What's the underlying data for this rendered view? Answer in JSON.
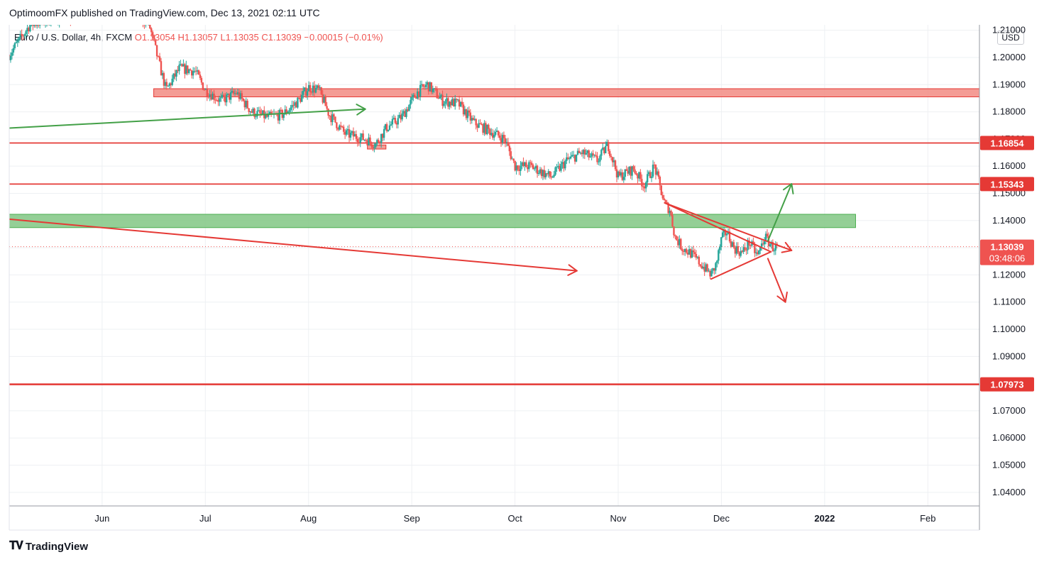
{
  "header": {
    "publisher_line": "OptimoomFX published on TradingView.com, Dec 13, 2021 02:11 UTC"
  },
  "legend": {
    "symbol": "Euro / U.S. Dollar, 4h, FXCM",
    "open": "O1.13054",
    "high": "H1.13057",
    "low": "L1.13035",
    "close": "C1.13039",
    "change": "−0.00015 (−0.01%)"
  },
  "currency_button": "USD",
  "footer": {
    "brand": "TradingView"
  },
  "colors": {
    "up": "#26a69a",
    "down": "#ef5350",
    "resistance_zone": "#f28b82",
    "support_zone": "#81c784",
    "level_line": "#e53935",
    "green_arrow": "#43a047",
    "grid": "#eef0f3"
  },
  "chart_data": {
    "type": "candlestick",
    "symbol": "EURUSD",
    "timeframe": "4h",
    "ylim": [
      1.035,
      1.212
    ],
    "y_ticks": [
      "1.21000",
      "1.20000",
      "1.19000",
      "1.18000",
      "1.17000",
      "1.16000",
      "1.15000",
      "1.14000",
      "1.13000",
      "1.12000",
      "1.11000",
      "1.10000",
      "1.09000",
      "1.08000",
      "1.07000",
      "1.06000",
      "1.05000",
      "1.04000"
    ],
    "x_ticks": [
      {
        "label": "Jun",
        "t": 1.0
      },
      {
        "label": "Jul",
        "t": 2.0
      },
      {
        "label": "Aug",
        "t": 3.0
      },
      {
        "label": "Sep",
        "t": 4.0
      },
      {
        "label": "Oct",
        "t": 5.0
      },
      {
        "label": "Nov",
        "t": 6.0
      },
      {
        "label": "Dec",
        "t": 7.0
      },
      {
        "label": "2022",
        "t": 8.0
      },
      {
        "label": "Feb",
        "t": 9.0
      }
    ],
    "xlim": [
      0.1,
      9.5
    ],
    "price_path": [
      [
        0.1,
        1.201
      ],
      [
        0.3,
        1.212
      ],
      [
        0.5,
        1.214
      ],
      [
        0.8,
        1.215
      ],
      [
        1.1,
        1.218
      ],
      [
        1.3,
        1.215
      ],
      [
        1.45,
        1.213
      ],
      [
        1.55,
        1.198
      ],
      [
        1.62,
        1.188
      ],
      [
        1.75,
        1.196
      ],
      [
        1.9,
        1.195
      ],
      [
        2.0,
        1.188
      ],
      [
        2.15,
        1.184
      ],
      [
        2.3,
        1.187
      ],
      [
        2.45,
        1.18
      ],
      [
        2.6,
        1.178
      ],
      [
        2.75,
        1.179
      ],
      [
        2.9,
        1.184
      ],
      [
        3.0,
        1.189
      ],
      [
        3.1,
        1.188
      ],
      [
        3.2,
        1.179
      ],
      [
        3.35,
        1.172
      ],
      [
        3.55,
        1.17
      ],
      [
        3.65,
        1.168
      ],
      [
        3.75,
        1.174
      ],
      [
        3.9,
        1.178
      ],
      [
        4.05,
        1.187
      ],
      [
        4.15,
        1.19
      ],
      [
        4.3,
        1.184
      ],
      [
        4.45,
        1.183
      ],
      [
        4.6,
        1.176
      ],
      [
        4.75,
        1.173
      ],
      [
        4.9,
        1.17
      ],
      [
        5.0,
        1.16
      ],
      [
        5.15,
        1.16
      ],
      [
        5.35,
        1.156
      ],
      [
        5.5,
        1.162
      ],
      [
        5.65,
        1.165
      ],
      [
        5.8,
        1.162
      ],
      [
        5.9,
        1.168
      ],
      [
        6.0,
        1.156
      ],
      [
        6.15,
        1.159
      ],
      [
        6.25,
        1.153
      ],
      [
        6.35,
        1.16
      ],
      [
        6.45,
        1.146
      ],
      [
        6.5,
        1.144
      ],
      [
        6.55,
        1.134
      ],
      [
        6.62,
        1.13
      ],
      [
        6.7,
        1.128
      ],
      [
        6.8,
        1.124
      ],
      [
        6.9,
        1.12
      ],
      [
        6.95,
        1.124
      ],
      [
        7.0,
        1.133
      ],
      [
        7.05,
        1.136
      ],
      [
        7.12,
        1.13
      ],
      [
        7.2,
        1.128
      ],
      [
        7.27,
        1.132
      ],
      [
        7.35,
        1.127
      ],
      [
        7.42,
        1.134
      ],
      [
        7.5,
        1.13
      ],
      [
        7.55,
        1.1304
      ]
    ],
    "last_price": "1.13039",
    "countdown": "03:48:06",
    "levels": [
      {
        "label": "1.16854",
        "price": 1.16854,
        "kind": "line"
      },
      {
        "label": "1.15343",
        "price": 1.15343,
        "kind": "line"
      },
      {
        "label": "1.07973",
        "price": 1.07973,
        "kind": "line"
      }
    ],
    "zones": [
      {
        "kind": "resistance",
        "t_start": 1.5,
        "t_end": 9.5,
        "price_low": 1.1855,
        "price_high": 1.1885
      },
      {
        "kind": "support",
        "t_start": 0.1,
        "t_end": 8.3,
        "price_low": 1.1374,
        "price_high": 1.1423
      },
      {
        "kind": "marker",
        "t_start": 3.57,
        "t_end": 3.75,
        "price_low": 1.1663,
        "price_high": 1.1678
      }
    ],
    "trendlines": [
      {
        "color": "green",
        "from": [
          0.1,
          1.174
        ],
        "to": [
          3.55,
          1.181
        ],
        "arrow": true
      },
      {
        "color": "red",
        "from": [
          0.1,
          1.1405
        ],
        "to": [
          5.6,
          1.1215
        ],
        "arrow": true
      },
      {
        "color": "red",
        "from": [
          6.45,
          1.1465
        ],
        "to": [
          7.68,
          1.129
        ],
        "arrow": true
      },
      {
        "color": "red",
        "from": [
          6.9,
          1.1185
        ],
        "to": [
          7.48,
          1.1285
        ],
        "arrow": false
      },
      {
        "color": "red",
        "from": [
          7.48,
          1.1285
        ],
        "to": [
          6.45,
          1.1465
        ],
        "arrow": false
      },
      {
        "color": "green",
        "from": [
          7.45,
          1.1325
        ],
        "to": [
          7.68,
          1.1535
        ],
        "arrow": true
      },
      {
        "color": "red",
        "from": [
          7.45,
          1.126
        ],
        "to": [
          7.62,
          1.11
        ],
        "arrow": true
      }
    ]
  }
}
